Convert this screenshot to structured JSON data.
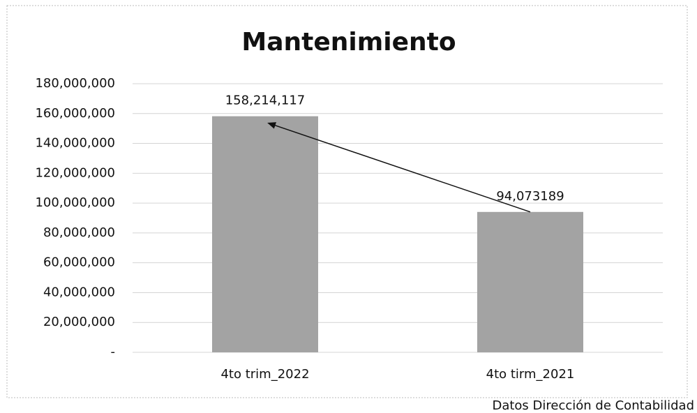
{
  "chart_data": {
    "type": "bar",
    "title": "Mantenimiento",
    "categories": [
      "4to trim_2022",
      "4to tirm_2021"
    ],
    "values": [
      158214117,
      94073189
    ],
    "value_labels": [
      "158,214,117",
      "94,073189"
    ],
    "color": "#a3a3a3",
    "ylim": [
      0,
      180000000
    ],
    "yticks": [
      {
        "value": 0,
        "label": "-"
      },
      {
        "value": 20000000,
        "label": "20,000,000"
      },
      {
        "value": 40000000,
        "label": "40,000,000"
      },
      {
        "value": 60000000,
        "label": "60,000,000"
      },
      {
        "value": 80000000,
        "label": "80,000,000"
      },
      {
        "value": 100000000,
        "label": "100,000,000"
      },
      {
        "value": 120000000,
        "label": "120,000,000"
      },
      {
        "value": 140000000,
        "label": "140,000,000"
      },
      {
        "value": 160000000,
        "label": "160,000,000"
      },
      {
        "value": 180000000,
        "label": "180,000,000"
      }
    ],
    "grid": true,
    "annotation": "Datos Dirección de Contabilidad"
  }
}
